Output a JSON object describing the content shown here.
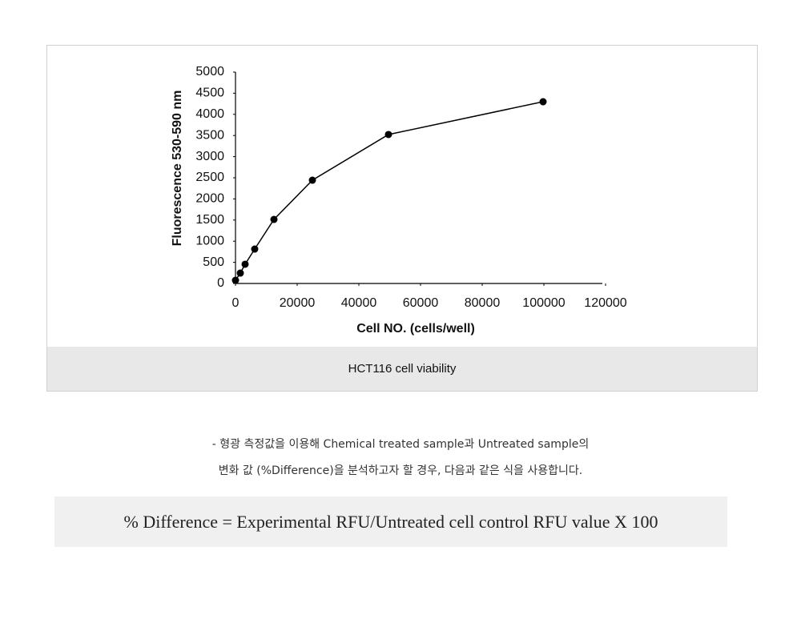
{
  "chart_data": {
    "type": "line",
    "x": [
      0,
      1560,
      3120,
      6230,
      12470,
      24940,
      49610,
      99740
    ],
    "values": [
      75,
      246,
      455,
      814,
      1515,
      2443,
      3523,
      4299
    ],
    "color": "#000000",
    "xlabel": "Cell NO. (cells/well)",
    "ylabel": "Fluorescence 530-590 nm",
    "xlim": [
      0,
      120000
    ],
    "xticks": [
      0,
      20000,
      40000,
      60000,
      80000,
      100000,
      120000
    ],
    "ylim": [
      0,
      5000
    ],
    "yticks": [
      0,
      500,
      1000,
      1500,
      2000,
      2500,
      3000,
      3500,
      4000,
      4500,
      5000
    ],
    "grid": false
  },
  "caption": "HCT116 cell viability",
  "notes": [
    "- 형광 측정값을 이용해 Chemical treated sample과 Untreated sample의",
    "변화 값 (%Difference)을 분석하고자 할 경우, 다음과 같은 식을 사용합니다."
  ],
  "formula": "% Difference = Experimental RFU/Untreated cell control RFU value X 100"
}
